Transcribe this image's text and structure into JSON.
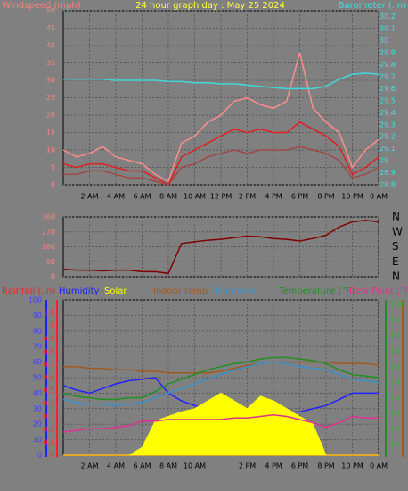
{
  "chart_data": [
    {
      "type": "line",
      "title": "24 hour graph day : May 25 2024",
      "ylabel": "Windspeed (mph)",
      "y2label": "Barometer (.in)",
      "x": [
        0,
        1,
        2,
        3,
        4,
        5,
        6,
        7,
        8,
        9,
        10,
        11,
        12,
        13,
        14,
        15,
        16,
        17,
        18,
        19,
        20,
        21,
        22,
        23,
        24
      ],
      "xlim": [
        0,
        24
      ],
      "xticks": [
        {
          "value": 2,
          "label": "2 AM"
        },
        {
          "value": 4,
          "label": "4 AM"
        },
        {
          "value": 6,
          "label": "6 AM"
        },
        {
          "value": 8,
          "label": "8 AM"
        },
        {
          "value": 10,
          "label": "10 AM"
        },
        {
          "value": 12,
          "label": "12 PM"
        },
        {
          "value": 14,
          "label": "2 PM"
        },
        {
          "value": 16,
          "label": "4 PM"
        },
        {
          "value": 18,
          "label": "6 PM"
        },
        {
          "value": 20,
          "label": "8 PM"
        },
        {
          "value": 22,
          "label": "10 PM"
        },
        {
          "value": 24,
          "label": "0 AM"
        }
      ],
      "ylim": [
        0,
        50
      ],
      "yticks": [
        0,
        5,
        10,
        15,
        20,
        25,
        30,
        35,
        40,
        45,
        50
      ],
      "y2lim": [
        28.8,
        30.25
      ],
      "y2ticks": [
        28.8,
        28.9,
        29,
        29.1,
        29.2,
        29.3,
        29.4,
        29.5,
        29.6,
        29.7,
        29.8,
        29.9,
        30,
        30.1,
        30.2
      ],
      "grid": true,
      "series": [
        {
          "color": "#ff8c8c",
          "values": [
            10,
            8,
            9,
            11,
            8,
            7,
            6,
            3,
            1,
            12,
            14,
            18,
            20,
            24,
            25,
            23,
            22,
            24,
            38,
            22,
            18,
            15,
            5,
            10,
            13
          ]
        },
        {
          "color": "#e02020",
          "values": [
            6,
            5,
            6,
            6,
            5,
            4,
            4,
            2,
            0,
            8,
            10,
            12,
            14,
            16,
            15,
            16,
            15,
            15,
            18,
            16,
            14,
            11,
            3,
            5,
            8
          ]
        },
        {
          "color": "#a04848",
          "values": [
            3,
            3,
            4,
            4,
            3,
            2,
            2,
            1,
            0,
            5,
            6,
            8,
            9,
            10,
            9,
            10,
            10,
            10,
            11,
            10,
            9,
            7,
            2,
            3,
            5
          ]
        },
        {
          "color": "#40d8d8",
          "axis": "y2",
          "values": [
            29.68,
            29.68,
            29.68,
            29.68,
            29.67,
            29.67,
            29.67,
            29.67,
            29.66,
            29.66,
            29.65,
            29.65,
            29.64,
            29.64,
            29.63,
            29.62,
            29.61,
            29.6,
            29.6,
            29.6,
            29.62,
            29.68,
            29.72,
            29.73,
            29.72
          ]
        }
      ]
    },
    {
      "type": "line",
      "x": [
        0,
        1,
        2,
        3,
        4,
        5,
        6,
        7,
        8,
        9,
        10,
        11,
        12,
        13,
        14,
        15,
        16,
        17,
        18,
        19,
        20,
        21,
        22,
        23,
        24
      ],
      "xlim": [
        0,
        24
      ],
      "xticks": [
        2,
        4,
        6,
        8,
        10,
        12,
        14,
        16,
        18,
        20,
        22,
        24
      ],
      "ylim": [
        0,
        360
      ],
      "yticks": [
        0,
        90,
        180,
        270,
        360
      ],
      "y2lim": [
        0,
        360
      ],
      "y2ticks": [
        {
          "value": 0,
          "label": "N"
        },
        {
          "value": 90,
          "label": "E"
        },
        {
          "value": 180,
          "label": "S"
        },
        {
          "value": 270,
          "label": "W"
        },
        {
          "value": 360,
          "label": "N"
        }
      ],
      "grid": true,
      "series": [
        {
          "color": "#800000",
          "values": [
            45,
            40,
            40,
            35,
            40,
            40,
            30,
            30,
            20,
            200,
            210,
            220,
            225,
            235,
            245,
            240,
            230,
            225,
            215,
            230,
            250,
            300,
            330,
            340,
            330
          ]
        }
      ]
    },
    {
      "type": "line",
      "x": [
        0,
        1,
        2,
        3,
        4,
        5,
        6,
        7,
        8,
        9,
        10,
        11,
        12,
        13,
        14,
        15,
        16,
        17,
        18,
        19,
        20,
        21,
        22,
        23,
        24
      ],
      "xlim": [
        0,
        24
      ],
      "xticks": [
        {
          "value": 2,
          "label": "2 AM"
        },
        {
          "value": 4,
          "label": "4 AM"
        },
        {
          "value": 6,
          "label": "6 AM"
        },
        {
          "value": 8,
          "label": "8 AM"
        },
        {
          "value": 10,
          "label": "10 AM"
        },
        {
          "value": 14,
          "label": "2 PM"
        },
        {
          "value": 16,
          "label": "4 PM"
        },
        {
          "value": 18,
          "label": "6 PM"
        },
        {
          "value": 20,
          "label": "8 PM"
        },
        {
          "value": 22,
          "label": "10 PM"
        },
        {
          "value": 24,
          "label": "0 AM"
        }
      ],
      "ylim": [
        0,
        100
      ],
      "yticks": [
        0,
        10,
        20,
        30,
        40,
        50,
        60,
        70,
        80,
        90,
        100
      ],
      "y2lim": [
        3,
        103
      ],
      "y2ticks": [
        10,
        20,
        30,
        40,
        50,
        60,
        70,
        80,
        90,
        100
      ],
      "y3lim": [
        0,
        1.2
      ],
      "y3ticks": [
        0,
        0.1,
        0.2,
        0.3,
        0.4,
        0.5,
        0.6,
        0.7,
        0.8,
        0.9,
        1,
        1.1
      ],
      "grid": true,
      "series": [
        {
          "name": "Rainfall (.in)",
          "color": "#ff2020",
          "axis": "y3",
          "values": [
            0,
            0,
            0,
            0,
            0,
            0,
            0,
            0,
            0,
            0,
            0,
            0,
            0,
            0,
            0,
            0,
            0,
            0,
            0,
            0,
            0,
            0,
            0,
            0,
            0
          ]
        },
        {
          "name": "Humidity",
          "color": "#2020ff",
          "values": [
            45,
            42,
            40,
            43,
            46,
            48,
            49,
            50,
            40,
            35,
            32,
            30,
            28,
            27,
            26,
            26,
            26,
            27,
            28,
            30,
            32,
            36,
            40,
            40,
            40
          ]
        },
        {
          "name": "Solar",
          "color": "#ffff00",
          "area": true,
          "values": [
            0,
            0,
            0,
            0,
            0,
            0,
            5,
            22,
            25,
            28,
            30,
            35,
            40,
            35,
            30,
            38,
            35,
            30,
            25,
            20,
            0,
            0,
            0,
            0,
            0
          ]
        },
        {
          "name": "Indoor temp",
          "color": "#a05a20",
          "axis": "y2",
          "values": [
            60,
            60,
            59,
            59,
            58,
            58,
            57,
            57,
            56,
            56,
            56,
            56,
            57,
            59,
            61,
            62,
            63,
            63,
            63,
            63,
            63,
            62,
            62,
            62,
            61
          ]
        },
        {
          "name": "Humidex",
          "color": "#3a90c8",
          "axis": "y2",
          "values": [
            39,
            37,
            36,
            36,
            35,
            36,
            37,
            40,
            43,
            46,
            49,
            52,
            55,
            58,
            60,
            62,
            63,
            62,
            60,
            59,
            58,
            55,
            52,
            51,
            50
          ]
        },
        {
          "name": "Temperature (°F)",
          "color": "#209020",
          "axis": "y2",
          "values": [
            43,
            41,
            40,
            39,
            39,
            40,
            40,
            44,
            49,
            52,
            55,
            58,
            60,
            62,
            63,
            65,
            66,
            66,
            65,
            64,
            62,
            58,
            55,
            54,
            53
          ]
        },
        {
          "name": "Dew Point (°F",
          "color": "#e03090",
          "axis": "y2",
          "values": [
            18,
            19,
            20,
            20,
            21,
            22,
            25,
            25,
            26,
            26,
            26,
            26,
            26,
            27,
            27,
            28,
            29,
            28,
            26,
            24,
            21,
            24,
            28,
            27,
            27
          ]
        }
      ]
    }
  ]
}
